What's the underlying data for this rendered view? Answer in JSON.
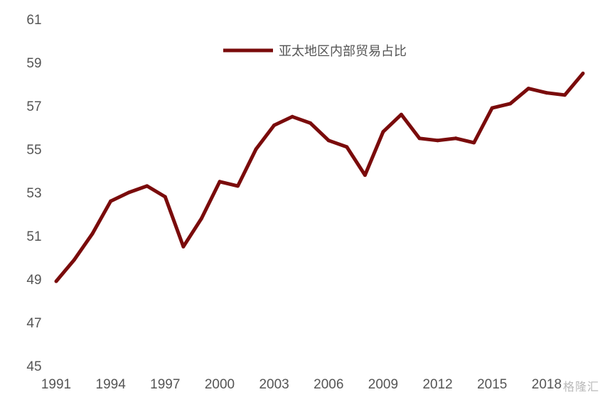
{
  "chart_data": {
    "type": "line",
    "title": "",
    "xlabel": "",
    "ylabel": "",
    "x": [
      1991,
      1992,
      1993,
      1994,
      1995,
      1996,
      1997,
      1998,
      1999,
      2000,
      2001,
      2002,
      2003,
      2004,
      2005,
      2006,
      2007,
      2008,
      2009,
      2010,
      2011,
      2012,
      2013,
      2014,
      2015,
      2016,
      2017,
      2018,
      2019,
      2020
    ],
    "series": [
      {
        "name": "亚太地区内部贸易占比",
        "color": "#7a0b0b",
        "values": [
          48.9,
          49.9,
          51.1,
          52.6,
          53.0,
          53.3,
          52.8,
          50.5,
          51.8,
          53.5,
          53.3,
          55.0,
          56.1,
          56.5,
          56.2,
          55.4,
          55.1,
          53.8,
          55.8,
          56.6,
          55.5,
          55.4,
          55.5,
          55.3,
          56.9,
          57.1,
          57.8,
          57.6,
          57.5,
          58.5
        ]
      }
    ],
    "ylim": [
      45,
      61
    ],
    "yticks": [
      45,
      47,
      49,
      51,
      53,
      55,
      57,
      59,
      61
    ],
    "xtick_labels": [
      "1991",
      "1994",
      "1997",
      "2000",
      "2003",
      "2006",
      "2009",
      "2012",
      "2015",
      "2018"
    ],
    "grid": false,
    "legend_position": "top-center"
  },
  "watermark": "格隆汇"
}
